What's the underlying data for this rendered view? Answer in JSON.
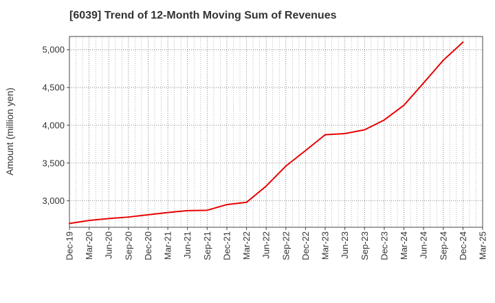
{
  "chart_data": {
    "type": "line",
    "title": "[6039]  Trend of 12-Month Moving Sum of Revenues",
    "xlabel": "",
    "ylabel": "Amount (million yen)",
    "ylim": [
      2650,
      5175
    ],
    "yticks": [
      3000,
      3500,
      4000,
      4500,
      5000
    ],
    "ytick_labels": [
      "3,000",
      "3,500",
      "4,000",
      "4,500",
      "5,000"
    ],
    "categories": [
      "Dec-19",
      "Mar-20",
      "Jun-20",
      "Sep-20",
      "Dec-20",
      "Mar-21",
      "Jun-21",
      "Sep-21",
      "Dec-21",
      "Mar-22",
      "Jun-22",
      "Sep-22",
      "Dec-22",
      "Mar-23",
      "Jun-23",
      "Sep-23",
      "Dec-23",
      "Mar-24",
      "Jun-24",
      "Sep-24",
      "Dec-24",
      "Mar-25"
    ],
    "grid": true,
    "grid_style": "dotted",
    "series": [
      {
        "color": "#e60000",
        "values": [
          2700,
          2740,
          2765,
          2785,
          2815,
          2845,
          2870,
          2875,
          2950,
          2980,
          3195,
          3460,
          3665,
          3875,
          3890,
          3940,
          4070,
          4265,
          4560,
          4860,
          5100,
          null
        ]
      }
    ]
  }
}
